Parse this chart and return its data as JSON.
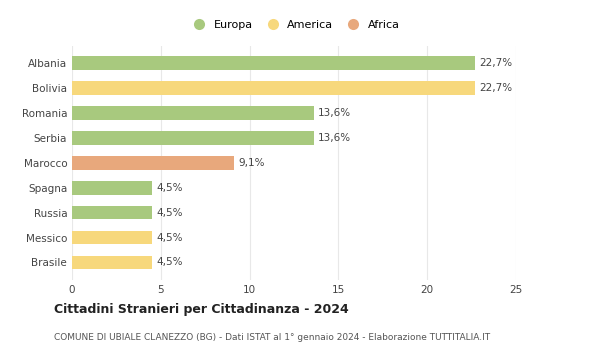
{
  "categories": [
    "Albania",
    "Bolivia",
    "Romania",
    "Serbia",
    "Marocco",
    "Spagna",
    "Russia",
    "Messico",
    "Brasile"
  ],
  "values": [
    22.7,
    22.7,
    13.6,
    13.6,
    9.1,
    4.5,
    4.5,
    4.5,
    4.5
  ],
  "labels": [
    "22,7%",
    "22,7%",
    "13,6%",
    "13,6%",
    "9,1%",
    "4,5%",
    "4,5%",
    "4,5%",
    "4,5%"
  ],
  "continents": [
    "Europa",
    "America",
    "Europa",
    "Europa",
    "Africa",
    "Europa",
    "Europa",
    "America",
    "America"
  ],
  "colors": {
    "Europa": "#a8c97e",
    "America": "#f7d87c",
    "Africa": "#e8a87c"
  },
  "xlim": [
    0,
    25
  ],
  "xticks": [
    0,
    5,
    10,
    15,
    20,
    25
  ],
  "title": "Cittadini Stranieri per Cittadinanza - 2024",
  "subtitle": "COMUNE DI UBIALE CLANEZZO (BG) - Dati ISTAT al 1° gennaio 2024 - Elaborazione TUTTITALIA.IT",
  "background_color": "#ffffff",
  "grid_color": "#e8e8e8",
  "bar_height": 0.55,
  "label_fontsize": 7.5,
  "ytick_fontsize": 7.5,
  "xtick_fontsize": 7.5,
  "legend_fontsize": 8,
  "title_fontsize": 9,
  "subtitle_fontsize": 6.5
}
